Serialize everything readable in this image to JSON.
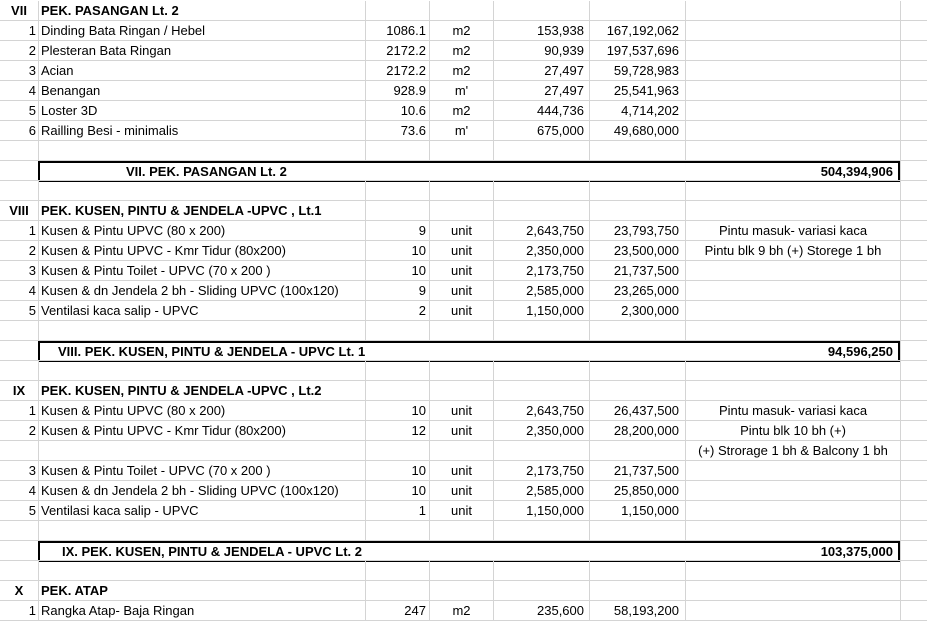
{
  "sections": [
    {
      "num": "VII",
      "title": "PEK. PASANGAN  Lt. 2",
      "items": [
        {
          "no": "1",
          "desc": "Dinding Bata Ringan / Hebel",
          "qty": "1086.1",
          "unit": "m2",
          "price": "153,938",
          "total": "167,192,062",
          "note": ""
        },
        {
          "no": "2",
          "desc": "Plesteran Bata Ringan",
          "qty": "2172.2",
          "unit": "m2",
          "price": "90,939",
          "total": "197,537,696",
          "note": ""
        },
        {
          "no": "3",
          "desc": "Acian",
          "qty": "2172.2",
          "unit": "m2",
          "price": "27,497",
          "total": "59,728,983",
          "note": ""
        },
        {
          "no": "4",
          "desc": "Benangan",
          "qty": "928.9",
          "unit": "m'",
          "price": "27,497",
          "total": "25,541,963",
          "note": ""
        },
        {
          "no": "5",
          "desc": "Loster 3D",
          "qty": "10.6",
          "unit": "m2",
          "price": "444,736",
          "total": "4,714,202",
          "note": ""
        },
        {
          "no": "6",
          "desc": "Railling Besi - minimalis",
          "qty": "73.6",
          "unit": "m'",
          "price": "675,000",
          "total": "49,680,000",
          "note": ""
        }
      ],
      "total_label": "VII. PEK. PASANGAN Lt. 2",
      "total_value": "504,394,906"
    },
    {
      "num": "VIII",
      "title": "PEK. KUSEN, PINTU & JENDELA -UPVC , Lt.1",
      "items": [
        {
          "no": "1",
          "desc": "Kusen & Pintu UPVC (80 x 200)",
          "qty": "9",
          "unit": "unit",
          "price": "2,643,750",
          "total": "23,793,750",
          "note": "Pintu masuk- variasi kaca"
        },
        {
          "no": "2",
          "desc": "Kusen & Pintu UPVC - Kmr Tidur (80x200)",
          "qty": "10",
          "unit": "unit",
          "price": "2,350,000",
          "total": "23,500,000",
          "note": "Pintu blk 9 bh (+) Storege 1 bh"
        },
        {
          "no": "3",
          "desc": "Kusen & Pintu Toilet - UPVC (70 x 200 )",
          "qty": "10",
          "unit": "unit",
          "price": "2,173,750",
          "total": "21,737,500",
          "note": ""
        },
        {
          "no": "4",
          "desc": "Kusen & dn Jendela 2 bh - Sliding UPVC (100x120)",
          "qty": "9",
          "unit": "unit",
          "price": "2,585,000",
          "total": "23,265,000",
          "note": ""
        },
        {
          "no": "5",
          "desc": "Ventilasi kaca salip - UPVC",
          "qty": "2",
          "unit": "unit",
          "price": "1,150,000",
          "total": "2,300,000",
          "note": ""
        }
      ],
      "total_label": "VIII. PEK. KUSEN, PINTU & JENDELA - UPVC Lt. 1",
      "total_value": "94,596,250"
    },
    {
      "num": "IX",
      "title": "PEK. KUSEN, PINTU & JENDELA -UPVC , Lt.2",
      "items": [
        {
          "no": "1",
          "desc": "Kusen & Pintu UPVC (80 x 200)",
          "qty": "10",
          "unit": "unit",
          "price": "2,643,750",
          "total": "26,437,500",
          "note": "Pintu masuk- variasi kaca"
        },
        {
          "no": "2",
          "desc": "Kusen & Pintu UPVC - Kmr Tidur (80x200)",
          "qty": "12",
          "unit": "unit",
          "price": "2,350,000",
          "total": "28,200,000",
          "note": "Pintu blk 10 bh (+)"
        },
        {
          "no": "",
          "desc": "",
          "qty": "",
          "unit": "",
          "price": "",
          "total": "",
          "note": "(+) Strorage 1 bh & Balcony 1 bh"
        },
        {
          "no": "3",
          "desc": "Kusen & Pintu Toilet - UPVC (70 x 200 )",
          "qty": "10",
          "unit": "unit",
          "price": "2,173,750",
          "total": "21,737,500",
          "note": ""
        },
        {
          "no": "4",
          "desc": "Kusen & dn Jendela 2 bh - Sliding UPVC (100x120)",
          "qty": "10",
          "unit": "unit",
          "price": "2,585,000",
          "total": "25,850,000",
          "note": ""
        },
        {
          "no": "5",
          "desc": "Ventilasi kaca salip - UPVC",
          "qty": "1",
          "unit": "unit",
          "price": "1,150,000",
          "total": "1,150,000",
          "note": ""
        }
      ],
      "total_label": "IX. PEK. KUSEN, PINTU & JENDELA - UPVC Lt. 2",
      "total_value": "103,375,000"
    },
    {
      "num": "X",
      "title": "PEK. ATAP",
      "items": [
        {
          "no": "1",
          "desc": "Rangka Atap- Baja Ringan",
          "qty": "247",
          "unit": "m2",
          "price": "235,600",
          "total": "58,193,200",
          "note": ""
        }
      ]
    }
  ]
}
